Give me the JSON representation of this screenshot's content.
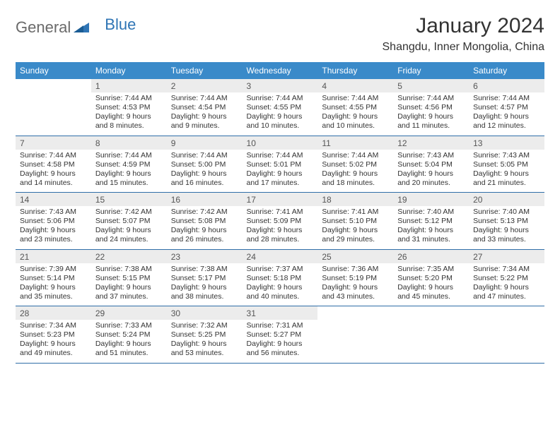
{
  "brand": {
    "general": "General",
    "blue": "Blue",
    "logo_color": "#2f75b5",
    "text_color": "#6a6a6a"
  },
  "header": {
    "title": "January 2024",
    "location": "Shangdu, Inner Mongolia, China"
  },
  "colors": {
    "header_bg": "#3a8ac9",
    "header_text": "#ffffff",
    "daynum_bg": "#ececec",
    "border": "#2f6ea8",
    "body_text": "#333333"
  },
  "weekdays": [
    "Sunday",
    "Monday",
    "Tuesday",
    "Wednesday",
    "Thursday",
    "Friday",
    "Saturday"
  ],
  "weeks": [
    [
      {
        "n": "",
        "sunrise": "",
        "sunset": "",
        "daylight": ""
      },
      {
        "n": "1",
        "sunrise": "Sunrise: 7:44 AM",
        "sunset": "Sunset: 4:53 PM",
        "daylight": "Daylight: 9 hours and 8 minutes."
      },
      {
        "n": "2",
        "sunrise": "Sunrise: 7:44 AM",
        "sunset": "Sunset: 4:54 PM",
        "daylight": "Daylight: 9 hours and 9 minutes."
      },
      {
        "n": "3",
        "sunrise": "Sunrise: 7:44 AM",
        "sunset": "Sunset: 4:55 PM",
        "daylight": "Daylight: 9 hours and 10 minutes."
      },
      {
        "n": "4",
        "sunrise": "Sunrise: 7:44 AM",
        "sunset": "Sunset: 4:55 PM",
        "daylight": "Daylight: 9 hours and 10 minutes."
      },
      {
        "n": "5",
        "sunrise": "Sunrise: 7:44 AM",
        "sunset": "Sunset: 4:56 PM",
        "daylight": "Daylight: 9 hours and 11 minutes."
      },
      {
        "n": "6",
        "sunrise": "Sunrise: 7:44 AM",
        "sunset": "Sunset: 4:57 PM",
        "daylight": "Daylight: 9 hours and 12 minutes."
      }
    ],
    [
      {
        "n": "7",
        "sunrise": "Sunrise: 7:44 AM",
        "sunset": "Sunset: 4:58 PM",
        "daylight": "Daylight: 9 hours and 14 minutes."
      },
      {
        "n": "8",
        "sunrise": "Sunrise: 7:44 AM",
        "sunset": "Sunset: 4:59 PM",
        "daylight": "Daylight: 9 hours and 15 minutes."
      },
      {
        "n": "9",
        "sunrise": "Sunrise: 7:44 AM",
        "sunset": "Sunset: 5:00 PM",
        "daylight": "Daylight: 9 hours and 16 minutes."
      },
      {
        "n": "10",
        "sunrise": "Sunrise: 7:44 AM",
        "sunset": "Sunset: 5:01 PM",
        "daylight": "Daylight: 9 hours and 17 minutes."
      },
      {
        "n": "11",
        "sunrise": "Sunrise: 7:44 AM",
        "sunset": "Sunset: 5:02 PM",
        "daylight": "Daylight: 9 hours and 18 minutes."
      },
      {
        "n": "12",
        "sunrise": "Sunrise: 7:43 AM",
        "sunset": "Sunset: 5:04 PM",
        "daylight": "Daylight: 9 hours and 20 minutes."
      },
      {
        "n": "13",
        "sunrise": "Sunrise: 7:43 AM",
        "sunset": "Sunset: 5:05 PM",
        "daylight": "Daylight: 9 hours and 21 minutes."
      }
    ],
    [
      {
        "n": "14",
        "sunrise": "Sunrise: 7:43 AM",
        "sunset": "Sunset: 5:06 PM",
        "daylight": "Daylight: 9 hours and 23 minutes."
      },
      {
        "n": "15",
        "sunrise": "Sunrise: 7:42 AM",
        "sunset": "Sunset: 5:07 PM",
        "daylight": "Daylight: 9 hours and 24 minutes."
      },
      {
        "n": "16",
        "sunrise": "Sunrise: 7:42 AM",
        "sunset": "Sunset: 5:08 PM",
        "daylight": "Daylight: 9 hours and 26 minutes."
      },
      {
        "n": "17",
        "sunrise": "Sunrise: 7:41 AM",
        "sunset": "Sunset: 5:09 PM",
        "daylight": "Daylight: 9 hours and 28 minutes."
      },
      {
        "n": "18",
        "sunrise": "Sunrise: 7:41 AM",
        "sunset": "Sunset: 5:10 PM",
        "daylight": "Daylight: 9 hours and 29 minutes."
      },
      {
        "n": "19",
        "sunrise": "Sunrise: 7:40 AM",
        "sunset": "Sunset: 5:12 PM",
        "daylight": "Daylight: 9 hours and 31 minutes."
      },
      {
        "n": "20",
        "sunrise": "Sunrise: 7:40 AM",
        "sunset": "Sunset: 5:13 PM",
        "daylight": "Daylight: 9 hours and 33 minutes."
      }
    ],
    [
      {
        "n": "21",
        "sunrise": "Sunrise: 7:39 AM",
        "sunset": "Sunset: 5:14 PM",
        "daylight": "Daylight: 9 hours and 35 minutes."
      },
      {
        "n": "22",
        "sunrise": "Sunrise: 7:38 AM",
        "sunset": "Sunset: 5:15 PM",
        "daylight": "Daylight: 9 hours and 37 minutes."
      },
      {
        "n": "23",
        "sunrise": "Sunrise: 7:38 AM",
        "sunset": "Sunset: 5:17 PM",
        "daylight": "Daylight: 9 hours and 38 minutes."
      },
      {
        "n": "24",
        "sunrise": "Sunrise: 7:37 AM",
        "sunset": "Sunset: 5:18 PM",
        "daylight": "Daylight: 9 hours and 40 minutes."
      },
      {
        "n": "25",
        "sunrise": "Sunrise: 7:36 AM",
        "sunset": "Sunset: 5:19 PM",
        "daylight": "Daylight: 9 hours and 43 minutes."
      },
      {
        "n": "26",
        "sunrise": "Sunrise: 7:35 AM",
        "sunset": "Sunset: 5:20 PM",
        "daylight": "Daylight: 9 hours and 45 minutes."
      },
      {
        "n": "27",
        "sunrise": "Sunrise: 7:34 AM",
        "sunset": "Sunset: 5:22 PM",
        "daylight": "Daylight: 9 hours and 47 minutes."
      }
    ],
    [
      {
        "n": "28",
        "sunrise": "Sunrise: 7:34 AM",
        "sunset": "Sunset: 5:23 PM",
        "daylight": "Daylight: 9 hours and 49 minutes."
      },
      {
        "n": "29",
        "sunrise": "Sunrise: 7:33 AM",
        "sunset": "Sunset: 5:24 PM",
        "daylight": "Daylight: 9 hours and 51 minutes."
      },
      {
        "n": "30",
        "sunrise": "Sunrise: 7:32 AM",
        "sunset": "Sunset: 5:25 PM",
        "daylight": "Daylight: 9 hours and 53 minutes."
      },
      {
        "n": "31",
        "sunrise": "Sunrise: 7:31 AM",
        "sunset": "Sunset: 5:27 PM",
        "daylight": "Daylight: 9 hours and 56 minutes."
      },
      {
        "n": "",
        "sunrise": "",
        "sunset": "",
        "daylight": ""
      },
      {
        "n": "",
        "sunrise": "",
        "sunset": "",
        "daylight": ""
      },
      {
        "n": "",
        "sunrise": "",
        "sunset": "",
        "daylight": ""
      }
    ]
  ]
}
